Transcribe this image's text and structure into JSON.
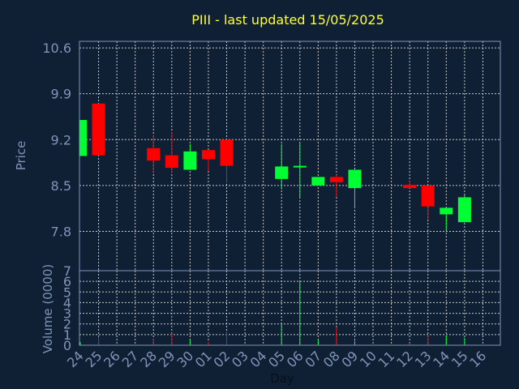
{
  "chart_data": {
    "type": "candlestick",
    "title": "PIII - last updated 15/05/2025",
    "xlabel": "Day",
    "price_panel": {
      "ylabel": "Price",
      "ylim": [
        7.2,
        10.7
      ],
      "yticks": [
        "10.6",
        "9.9",
        "9.2",
        "8.5",
        "7.8"
      ],
      "ytick_values": [
        10.6,
        9.9,
        9.2,
        8.5,
        7.8
      ],
      "grid": true
    },
    "volume_panel": {
      "ylabel": "Volume (0000)",
      "ylim": [
        0,
        7
      ],
      "yticks": [
        "7",
        "6",
        "5",
        "4",
        "3",
        "2",
        "1",
        "0"
      ],
      "ytick_values": [
        7,
        6,
        5,
        4,
        3,
        2,
        1,
        0
      ],
      "grid": true
    },
    "categories": [
      "24",
      "25",
      "26",
      "27",
      "28",
      "29",
      "30",
      "01",
      "02",
      "03",
      "04",
      "05",
      "06",
      "07",
      "08",
      "09",
      "10",
      "11",
      "12",
      "13",
      "14",
      "15",
      "16"
    ],
    "candles": [
      {
        "day": "24",
        "open": 8.95,
        "close": 9.5,
        "high": 9.5,
        "low": 8.95,
        "volume": 0.3
      },
      {
        "day": "25",
        "open": 9.75,
        "close": 8.96,
        "high": 9.75,
        "low": 8.96,
        "volume": 0.8
      },
      {
        "day": "28",
        "open": 9.07,
        "close": 8.88,
        "high": 9.27,
        "low": 8.68,
        "volume": 0.6
      },
      {
        "day": "29",
        "open": 8.96,
        "close": 8.77,
        "high": 9.32,
        "low": 8.7,
        "volume": 1.1
      },
      {
        "day": "30",
        "open": 8.74,
        "close": 9.02,
        "high": 9.13,
        "low": 8.74,
        "volume": 0.5
      },
      {
        "day": "01",
        "open": 9.04,
        "close": 8.9,
        "high": 9.04,
        "low": 8.72,
        "volume": 0.3
      },
      {
        "day": "02",
        "open": 9.2,
        "close": 8.8,
        "high": 9.2,
        "low": 8.54,
        "volume": 1.3
      },
      {
        "day": "05",
        "open": 8.6,
        "close": 8.79,
        "high": 9.13,
        "low": 8.44,
        "volume": 2.0
      },
      {
        "day": "06",
        "open": 8.79,
        "close": 8.8,
        "high": 9.16,
        "low": 8.32,
        "volume": 6.0
      },
      {
        "day": "07",
        "open": 8.5,
        "close": 8.63,
        "high": 8.63,
        "low": 8.5,
        "volume": 0.5
      },
      {
        "day": "08",
        "open": 8.63,
        "close": 8.55,
        "high": 8.66,
        "low": 8.33,
        "volume": 1.7
      },
      {
        "day": "09",
        "open": 8.46,
        "close": 8.74,
        "high": 8.74,
        "low": 8.16,
        "volume": 0.4
      },
      {
        "day": "12",
        "open": 8.51,
        "close": 8.46,
        "high": 8.58,
        "low": 8.46,
        "volume": 0.2
      },
      {
        "day": "13",
        "open": 8.5,
        "close": 8.18,
        "high": 8.5,
        "low": 7.98,
        "volume": 0.9
      },
      {
        "day": "14",
        "open": 8.06,
        "close": 8.16,
        "high": 8.16,
        "low": 7.83,
        "volume": 0.9
      },
      {
        "day": "15",
        "open": 7.94,
        "close": 8.32,
        "high": 8.35,
        "low": 7.94,
        "volume": 0.7
      }
    ],
    "colors": {
      "background": "#0f2035",
      "title": "#ffff33",
      "axis_text": "#7f95b8",
      "up": "#00ff33",
      "down": "#ff0000",
      "grid": "#c8c8c8",
      "frame": "#7f95b8"
    }
  }
}
